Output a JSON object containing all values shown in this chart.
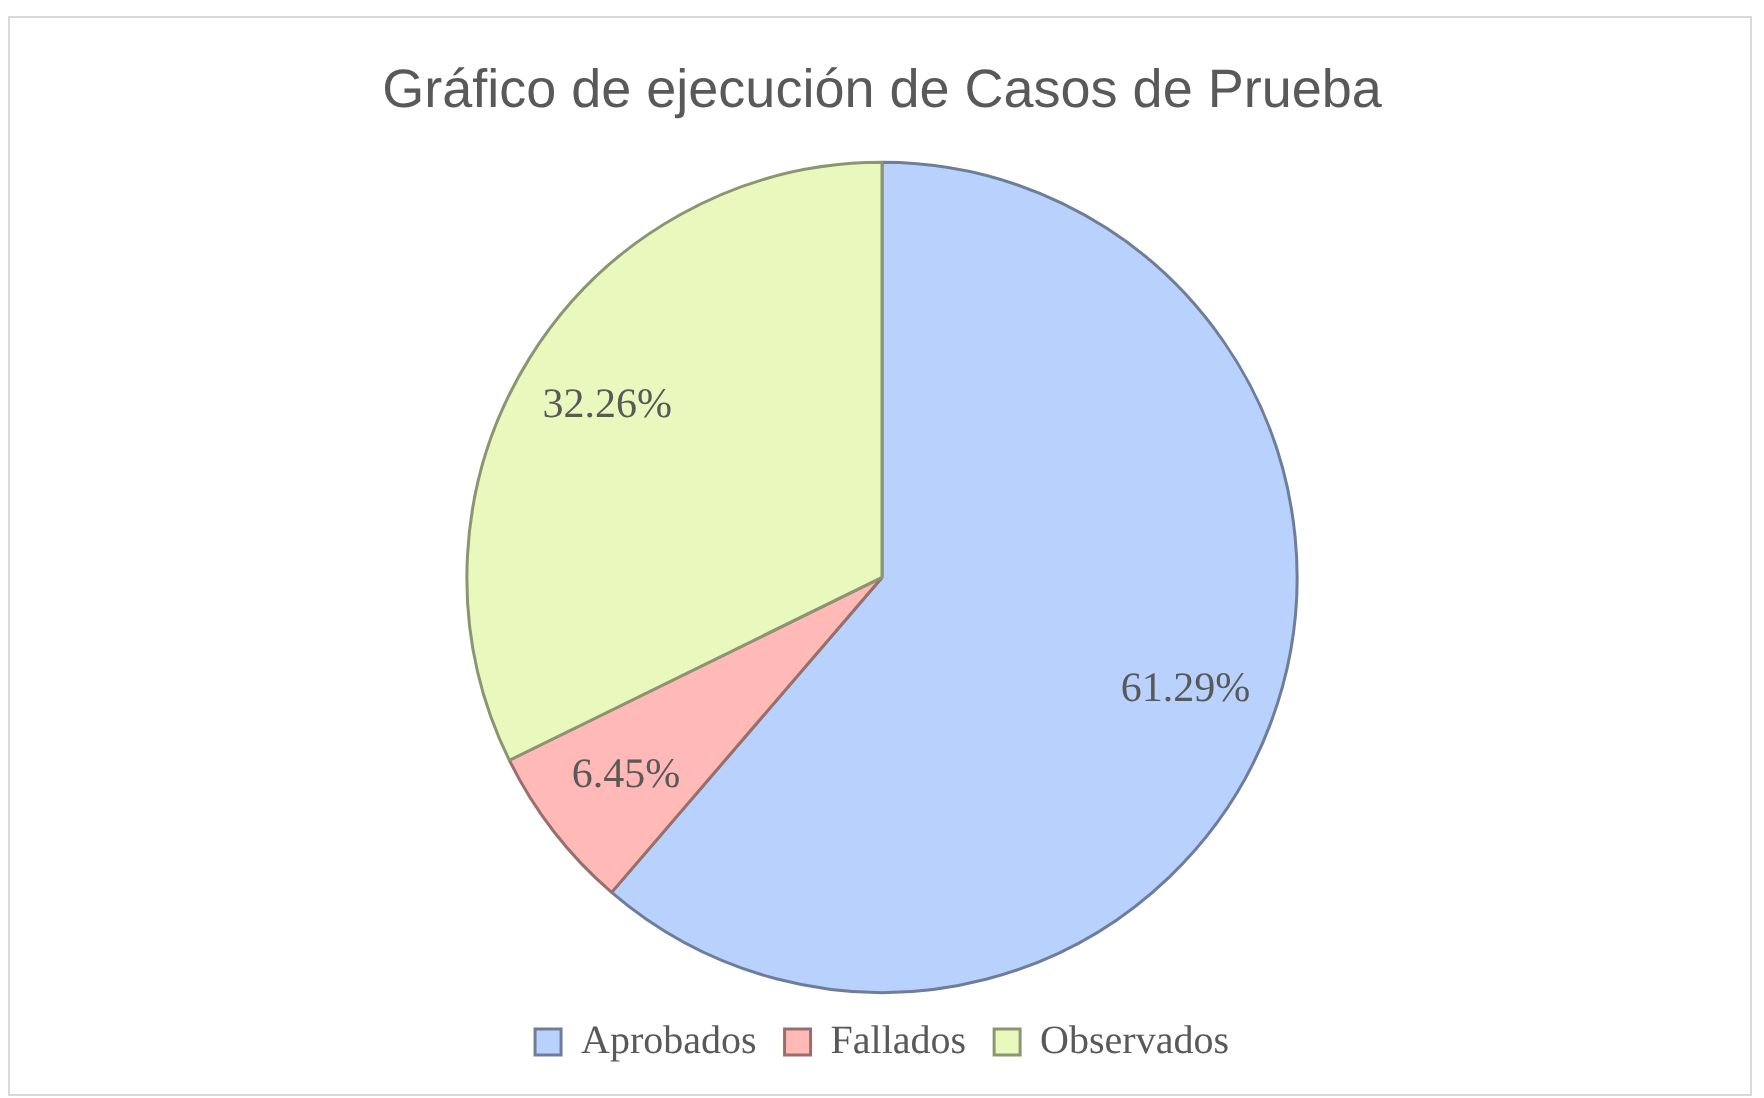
{
  "chart_data": {
    "type": "pie",
    "title": "Gráfico de ejecución de Casos de Prueba",
    "categories": [
      "Aprobados",
      "Fallados",
      "Observados"
    ],
    "values": [
      61.29,
      6.45,
      32.26
    ],
    "colors": [
      "#b9d2fd",
      "#ffb9b6",
      "#e9f9bd"
    ],
    "value_labels": [
      "61.29%",
      "6.45%",
      "32.26%"
    ],
    "legend": "bottom"
  }
}
